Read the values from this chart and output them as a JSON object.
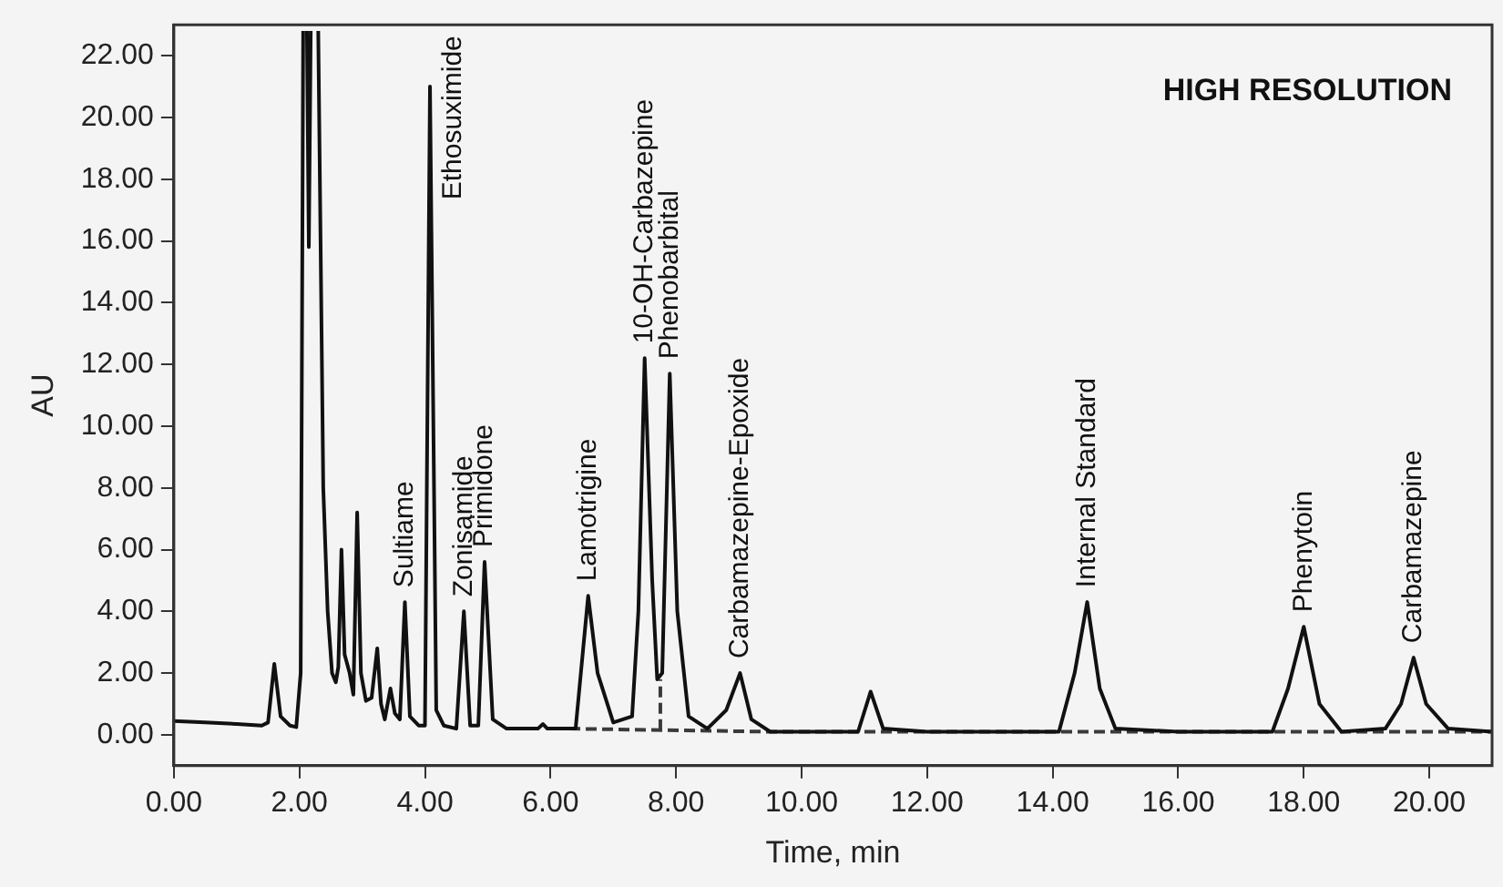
{
  "chart_data": {
    "type": "line",
    "title": "HIGH RESOLUTION",
    "xlabel": "Time, min",
    "ylabel": "AU",
    "xlim": [
      0,
      21
    ],
    "ylim": [
      -1,
      23
    ],
    "xticks": [
      {
        "value": 0,
        "label": "0.00"
      },
      {
        "value": 2,
        "label": "2.00"
      },
      {
        "value": 4,
        "label": "4.00"
      },
      {
        "value": 6,
        "label": "6.00"
      },
      {
        "value": 8,
        "label": "8.00"
      },
      {
        "value": 10,
        "label": "10.00"
      },
      {
        "value": 12,
        "label": "12.00"
      },
      {
        "value": 14,
        "label": "14.00"
      },
      {
        "value": 16,
        "label": "16.00"
      },
      {
        "value": 18,
        "label": "18.00"
      },
      {
        "value": 20,
        "label": "20.00"
      }
    ],
    "yticks": [
      {
        "value": 0,
        "label": "0.00"
      },
      {
        "value": 2,
        "label": "2.00"
      },
      {
        "value": 4,
        "label": "4.00"
      },
      {
        "value": 6,
        "label": "6.00"
      },
      {
        "value": 8,
        "label": "8.00"
      },
      {
        "value": 10,
        "label": "10.00"
      },
      {
        "value": 12,
        "label": "12.00"
      },
      {
        "value": 14,
        "label": "14.00"
      },
      {
        "value": 16,
        "label": "16.00"
      },
      {
        "value": 18,
        "label": "18.00"
      },
      {
        "value": 20,
        "label": "20.00"
      },
      {
        "value": 22,
        "label": "22.00"
      }
    ],
    "grid": false,
    "legend": false,
    "series": [
      {
        "color": "#111111",
        "line_style": "solid",
        "x": [
          0,
          0.5,
          1.0,
          1.4,
          1.5,
          1.6,
          1.7,
          1.85,
          1.95,
          2.02,
          2.06,
          2.08,
          2.12,
          2.15,
          2.18,
          2.22,
          2.3,
          2.38,
          2.45,
          2.52,
          2.58,
          2.62,
          2.67,
          2.72,
          2.8,
          2.86,
          2.92,
          2.98,
          3.06,
          3.15,
          3.24,
          3.3,
          3.36,
          3.45,
          3.52,
          3.6,
          3.68,
          3.76,
          3.9,
          4.0,
          4.08,
          4.18,
          4.3,
          4.5,
          4.62,
          4.72,
          4.85,
          4.95,
          5.08,
          5.3,
          5.8,
          5.88,
          5.95,
          6.4,
          6.6,
          6.75,
          7.0,
          7.3,
          7.4,
          7.5,
          7.62,
          7.7,
          7.78,
          7.9,
          8.02,
          8.2,
          8.5,
          8.8,
          9.02,
          9.2,
          9.5,
          10.4,
          10.9,
          11.1,
          11.3,
          12,
          14.1,
          14.35,
          14.55,
          14.75,
          15.0,
          16,
          17.5,
          17.75,
          18.0,
          18.25,
          18.6,
          19.3,
          19.55,
          19.75,
          19.95,
          20.3,
          21
        ],
        "values": [
          0.45,
          0.4,
          0.35,
          0.3,
          0.4,
          2.3,
          0.6,
          0.3,
          0.25,
          2,
          22.8,
          null,
          22.8,
          15.8,
          22.8,
          null,
          22.8,
          8,
          4,
          2.0,
          1.7,
          2.2,
          6.0,
          2.6,
          2.0,
          1.3,
          7.2,
          2.0,
          1.1,
          1.2,
          2.8,
          1.0,
          0.5,
          1.5,
          0.7,
          0.5,
          4.3,
          0.6,
          0.3,
          0.3,
          21.0,
          0.8,
          0.3,
          0.2,
          4.0,
          0.3,
          0.3,
          5.6,
          0.5,
          0.2,
          0.2,
          0.35,
          0.2,
          0.2,
          4.5,
          2.0,
          0.4,
          0.6,
          4,
          12.2,
          5,
          1.8,
          2,
          11.7,
          4,
          0.6,
          0.2,
          0.8,
          2.0,
          0.5,
          0.1,
          0.1,
          0.1,
          1.4,
          0.2,
          0.1,
          0.1,
          2,
          4.3,
          1.5,
          0.2,
          0.1,
          0.1,
          1.5,
          3.5,
          1.0,
          0.1,
          0.2,
          1.0,
          2.5,
          1.0,
          0.2,
          0.1
        ]
      },
      {
        "color": "#3a3a3a",
        "line_style": "dashed",
        "x": [
          6.3,
          9.5,
          21
        ],
        "values": [
          0.2,
          0.1,
          0.1
        ]
      },
      {
        "color": "#3a3a3a",
        "line_style": "dashed",
        "x": [
          7.75,
          7.75
        ],
        "values": [
          0.15,
          1.8
        ]
      }
    ],
    "annotations": [
      {
        "text": "Sultiame",
        "x": 3.68,
        "y": 4.3
      },
      {
        "text": "Ethosuximide",
        "x": 4.08,
        "y": 21.0
      },
      {
        "text": "Zonisamide",
        "x": 4.62,
        "y": 4.0
      },
      {
        "text": "Primidone",
        "x": 4.95,
        "y": 5.6
      },
      {
        "text": "Lamotrigine",
        "x": 6.6,
        "y": 4.5
      },
      {
        "text": "10-OH-Carbazepine",
        "x": 7.5,
        "y": 12.2
      },
      {
        "text": "Phenobarbital",
        "x": 7.9,
        "y": 11.7
      },
      {
        "text": "Carbamazepine-Epoxide",
        "x": 9.02,
        "y": 2.0
      },
      {
        "text": "Internal Standard",
        "x": 14.55,
        "y": 4.3
      },
      {
        "text": "Phenytoin",
        "x": 18.0,
        "y": 3.5
      },
      {
        "text": "Carbamazepine",
        "x": 19.75,
        "y": 2.5
      }
    ]
  }
}
